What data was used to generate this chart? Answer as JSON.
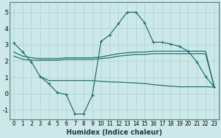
{
  "xlabel": "Humidex (Indice chaleur)",
  "xlim": [
    -0.5,
    23.5
  ],
  "ylim": [
    -1.6,
    5.6
  ],
  "yticks": [
    -1,
    0,
    1,
    2,
    3,
    4,
    5
  ],
  "xticks": [
    0,
    1,
    2,
    3,
    4,
    5,
    6,
    7,
    8,
    9,
    10,
    11,
    12,
    13,
    14,
    15,
    16,
    17,
    18,
    19,
    20,
    21,
    22,
    23
  ],
  "bg_color": "#cde8e8",
  "line_color": "#1a6b6b",
  "grid_color": "#aed4d4",
  "lines": [
    {
      "x": [
        0,
        1,
        2,
        3,
        4,
        5,
        6,
        7,
        8,
        9,
        10,
        11,
        12,
        13,
        14,
        15,
        16,
        17,
        18,
        19,
        20,
        21,
        22,
        23
      ],
      "y": [
        3.1,
        2.55,
        1.95,
        1.05,
        0.6,
        0.05,
        -0.05,
        -1.25,
        -1.25,
        -0.1,
        3.2,
        3.6,
        4.3,
        5.0,
        5.0,
        4.35,
        3.15,
        3.15,
        3.05,
        2.9,
        2.6,
        1.95,
        1.05,
        0.4
      ],
      "marker": true
    },
    {
      "x": [
        0,
        1,
        2,
        3,
        4,
        5,
        6,
        7,
        8,
        9,
        10,
        11,
        12,
        13,
        14,
        15,
        16,
        17,
        18,
        19,
        20,
        21,
        22,
        23
      ],
      "y": [
        2.55,
        2.3,
        2.2,
        2.15,
        2.15,
        2.15,
        2.2,
        2.2,
        2.2,
        2.2,
        2.25,
        2.35,
        2.45,
        2.5,
        2.55,
        2.55,
        2.6,
        2.6,
        2.6,
        2.6,
        2.6,
        2.6,
        2.6,
        0.4
      ],
      "marker": false
    },
    {
      "x": [
        0,
        1,
        2,
        3,
        4,
        5,
        6,
        7,
        8,
        9,
        10,
        11,
        12,
        13,
        14,
        15,
        16,
        17,
        18,
        19,
        20,
        21,
        22,
        23
      ],
      "y": [
        2.3,
        2.1,
        2.05,
        2.05,
        2.05,
        2.05,
        2.1,
        2.1,
        2.1,
        2.1,
        2.15,
        2.2,
        2.3,
        2.35,
        2.4,
        2.4,
        2.45,
        2.45,
        2.45,
        2.45,
        2.45,
        2.45,
        2.45,
        0.4
      ],
      "marker": false
    },
    {
      "x": [
        3,
        4,
        5,
        6,
        7,
        8,
        9,
        10,
        11,
        12,
        13,
        14,
        15,
        16,
        17,
        18,
        19,
        20,
        21,
        22,
        23
      ],
      "y": [
        1.05,
        0.8,
        0.8,
        0.8,
        0.8,
        0.8,
        0.8,
        0.75,
        0.72,
        0.7,
        0.68,
        0.65,
        0.62,
        0.55,
        0.5,
        0.45,
        0.42,
        0.42,
        0.42,
        0.42,
        0.4
      ],
      "marker": false
    }
  ]
}
